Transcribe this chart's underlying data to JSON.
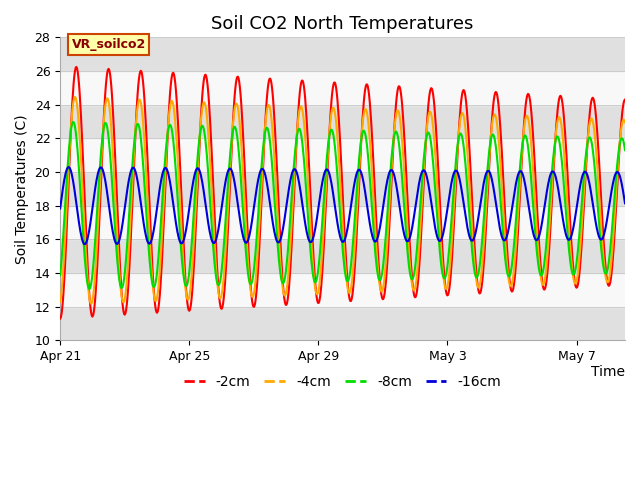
{
  "title": "Soil CO2 North Temperatures",
  "xlabel": "Time",
  "ylabel": "Soil Temperatures (C)",
  "ylim": [
    10,
    28
  ],
  "xlim_days": [
    0,
    17.5
  ],
  "x_ticks_days": [
    0,
    4,
    8,
    12,
    16
  ],
  "x_tick_labels": [
    "Apr 21",
    "Apr 25",
    "Apr 29",
    "May 3",
    "May 7"
  ],
  "series": {
    "2cm": {
      "color": "#ff0000",
      "label": "-2cm"
    },
    "4cm": {
      "color": "#ffaa00",
      "label": "-4cm"
    },
    "8cm": {
      "color": "#00dd00",
      "label": "-8cm"
    },
    "16cm": {
      "color": "#0000dd",
      "label": "-16cm"
    }
  },
  "annotation_label": "VR_soilco2",
  "bg_color": "#f0f0f0",
  "band_light": "#f8f8f8",
  "band_dark": "#e0e0e0",
  "title_fontsize": 13,
  "axis_label_fontsize": 10,
  "tick_fontsize": 9,
  "legend_fontsize": 10,
  "line_width": 1.5
}
